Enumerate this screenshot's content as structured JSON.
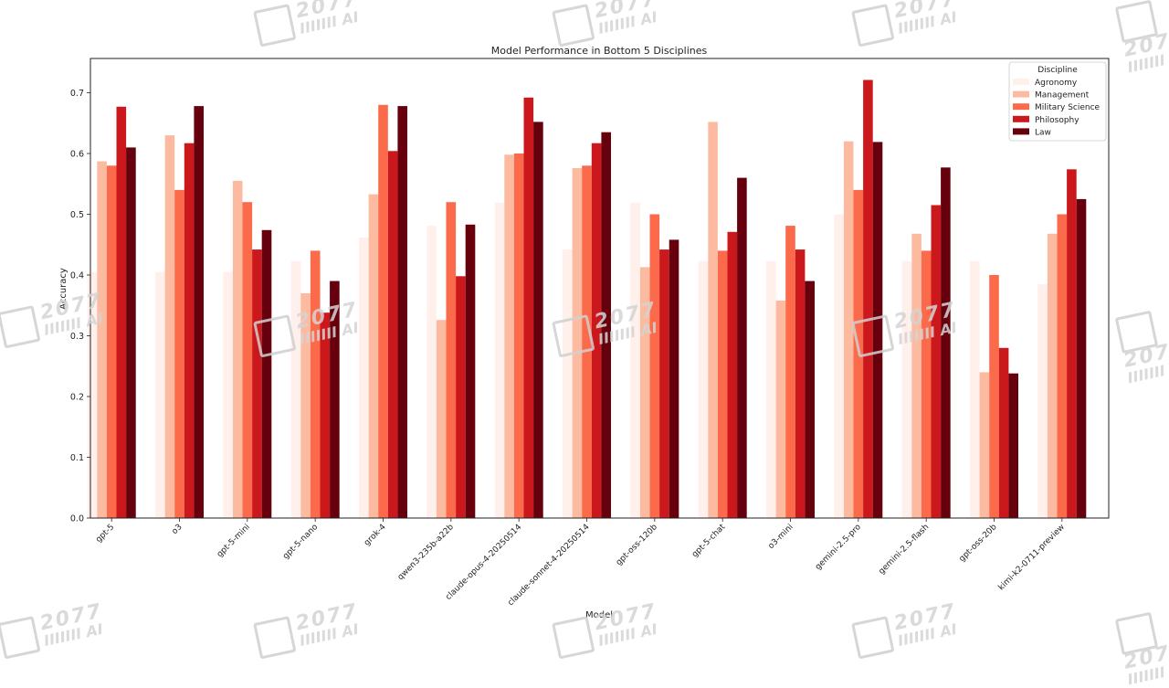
{
  "chart_data": {
    "type": "bar",
    "title": "Model Performance in Bottom 5 Disciplines",
    "xlabel": "Model",
    "ylabel": "Accuracy",
    "ylim": [
      0,
      0.76
    ],
    "yticks": [
      0.0,
      0.1,
      0.2,
      0.3,
      0.4,
      0.5,
      0.6,
      0.7
    ],
    "grid": false,
    "legend": {
      "title": "Discipline",
      "position": "upper right"
    },
    "categories": [
      "gpt-5",
      "o3",
      "gpt-5-mini",
      "gpt-5-nano",
      "grok-4",
      "qwen3-235b-a22b",
      "claude-opus-4-20250514",
      "claude-sonnet-4-20250514",
      "gpt-oss-120b",
      "gpt-5-chat",
      "o3-mini",
      "gemini-2.5-pro",
      "gemini-2.5-flash",
      "gpt-oss-20b",
      "kimi-k2-0711-preview"
    ],
    "series": [
      {
        "name": "Agronomy",
        "color": "#fff0eb",
        "values": [
          0.405,
          0.405,
          0.405,
          0.423,
          0.462,
          0.481,
          0.519,
          0.442,
          0.519,
          0.423,
          0.423,
          0.5,
          0.423,
          0.423,
          0.385
        ]
      },
      {
        "name": "Management",
        "color": "#fcbba1",
        "values": [
          0.587,
          0.63,
          0.555,
          0.37,
          0.533,
          0.326,
          0.598,
          0.576,
          0.413,
          0.652,
          0.358,
          0.62,
          0.468,
          0.24,
          0.468
        ]
      },
      {
        "name": "Military Science",
        "color": "#fb6a4a",
        "values": [
          0.58,
          0.54,
          0.52,
          0.44,
          0.68,
          0.52,
          0.6,
          0.58,
          0.5,
          0.44,
          0.481,
          0.54,
          0.44,
          0.4,
          0.5
        ]
      },
      {
        "name": "Philosophy",
        "color": "#cb181d",
        "values": [
          0.677,
          0.617,
          0.442,
          0.338,
          0.604,
          0.398,
          0.692,
          0.617,
          0.442,
          0.471,
          0.442,
          0.721,
          0.515,
          0.28,
          0.574
        ]
      },
      {
        "name": "Law",
        "color": "#67000d",
        "values": [
          0.61,
          0.678,
          0.474,
          0.39,
          0.678,
          0.483,
          0.652,
          0.635,
          0.458,
          0.56,
          0.39,
          0.619,
          0.577,
          0.238,
          0.525
        ]
      }
    ]
  },
  "watermark": {
    "line1": "2077",
    "line2": "IIIIIII AI"
  }
}
